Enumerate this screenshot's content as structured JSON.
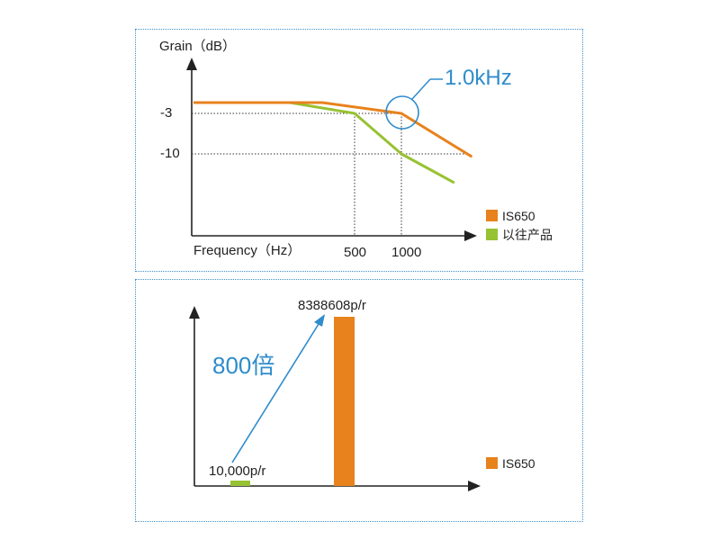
{
  "colors": {
    "accent": "#e8821c",
    "legacy": "#97c233",
    "annotation": "#2f8ccc",
    "axis": "#222222",
    "panel_border": "#3d8fc9"
  },
  "chart_data": [
    {
      "type": "line",
      "title": "",
      "ylabel": "Grain（dB）",
      "xlabel": "Frequency（Hz）",
      "x_ticks": [
        "500",
        "1000"
      ],
      "y_ticks": [
        "-3",
        "-10"
      ],
      "annotation": "1.0kHz",
      "legend_position": "bottom-right",
      "series": [
        {
          "name": "IS650",
          "color": "#e8821c",
          "points": [
            [
              0,
              0
            ],
            [
              400,
              0
            ],
            [
              1000,
              -3
            ],
            [
              1800,
              -10.5
            ]
          ]
        },
        {
          "name": "以往产品",
          "color": "#97c233",
          "points": [
            [
              0,
              0
            ],
            [
              300,
              0
            ],
            [
              500,
              -3
            ],
            [
              1000,
              -10
            ],
            [
              1600,
              -15
            ]
          ]
        }
      ]
    },
    {
      "type": "bar",
      "title": "",
      "categories": [
        "以往产品",
        "IS650"
      ],
      "values": [
        10000,
        8388608
      ],
      "value_labels": [
        "10,000p/r",
        "8388608p/r"
      ],
      "colors": [
        "#97c233",
        "#e8821c"
      ],
      "annotation": "800倍",
      "legend": [
        {
          "name": "IS650",
          "color": "#e8821c"
        }
      ],
      "legend_position": "right"
    }
  ]
}
